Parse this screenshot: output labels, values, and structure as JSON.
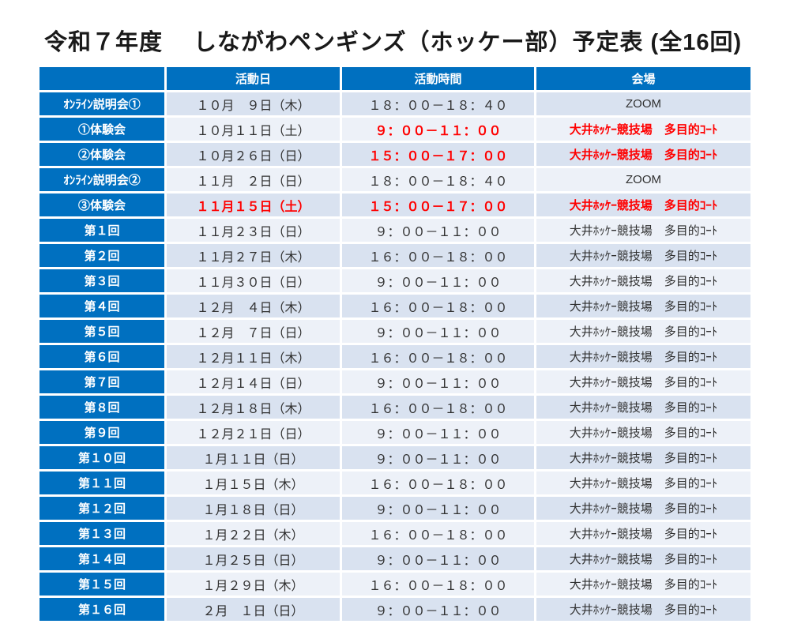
{
  "title": "令和７年度　 しながわペンギンズ（ホッケー部）予定表 (全16回)",
  "colors": {
    "header_blue": "#0070C0",
    "row_blue": "#d9e2f0",
    "row_light": "#edf1f8",
    "highlight_red": "#FF0000",
    "text_dark": "#303030",
    "title_color": "#1a1a1a"
  },
  "table": {
    "headers": [
      "活動日",
      "活動時間",
      "会場"
    ],
    "rows": [
      {
        "label": "ｵﾝﾗｲﾝ説明会①",
        "date": "１０月　９日（木）",
        "time": "１８：００－１８：４０",
        "venue": "ZOOM",
        "date_red": false,
        "time_red": false,
        "venue_red": false
      },
      {
        "label": "①体験会",
        "date": "１０月１１日（土）",
        "time": "９：００－１１：００",
        "venue": "大井ﾎｯｹｰ競技場　多目的ｺｰﾄ",
        "date_red": false,
        "time_red": true,
        "venue_red": true
      },
      {
        "label": "②体験会",
        "date": "１０月２６日（日）",
        "time": "１５：００－１７：００",
        "venue": "大井ﾎｯｹｰ競技場　多目的ｺｰﾄ",
        "date_red": false,
        "time_red": true,
        "venue_red": true
      },
      {
        "label": "ｵﾝﾗｲﾝ説明会②",
        "date": "１１月　２日（日）",
        "time": "１８：００－１８：４０",
        "venue": "ZOOM",
        "date_red": false,
        "time_red": false,
        "venue_red": false
      },
      {
        "label": "③体験会",
        "date": "１１月１５日（土）",
        "time": "１５：００－１７：００",
        "venue": "大井ﾎｯｹｰ競技場　多目的ｺｰﾄ",
        "date_red": true,
        "time_red": true,
        "venue_red": true
      },
      {
        "label": "第１回",
        "date": "１１月２３日（日）",
        "time": "９：００－１１：００",
        "venue": "大井ﾎｯｹｰ競技場　多目的ｺｰﾄ",
        "date_red": false,
        "time_red": false,
        "venue_red": false
      },
      {
        "label": "第２回",
        "date": "１１月２７日（木）",
        "time": "１６：００－１８：００",
        "venue": "大井ﾎｯｹｰ競技場　多目的ｺｰﾄ",
        "date_red": false,
        "time_red": false,
        "venue_red": false
      },
      {
        "label": "第３回",
        "date": "１１月３０日（日）",
        "time": "９：００－１１：００",
        "venue": "大井ﾎｯｹｰ競技場　多目的ｺｰﾄ",
        "date_red": false,
        "time_red": false,
        "venue_red": false
      },
      {
        "label": "第４回",
        "date": "１２月　４日（木）",
        "time": "１６：００－１８：００",
        "venue": "大井ﾎｯｹｰ競技場　多目的ｺｰﾄ",
        "date_red": false,
        "time_red": false,
        "venue_red": false
      },
      {
        "label": "第５回",
        "date": "１２月　７日（日）",
        "time": "９：００－１１：００",
        "venue": "大井ﾎｯｹｰ競技場　多目的ｺｰﾄ",
        "date_red": false,
        "time_red": false,
        "venue_red": false
      },
      {
        "label": "第６回",
        "date": "１２月１１日（木）",
        "time": "１６：００－１８：００",
        "venue": "大井ﾎｯｹｰ競技場　多目的ｺｰﾄ",
        "date_red": false,
        "time_red": false,
        "venue_red": false
      },
      {
        "label": "第７回",
        "date": "１２月１４日（日）",
        "time": "９：００－１１：００",
        "venue": "大井ﾎｯｹｰ競技場　多目的ｺｰﾄ",
        "date_red": false,
        "time_red": false,
        "venue_red": false
      },
      {
        "label": "第８回",
        "date": "１２月１８日（木）",
        "time": "１６：００－１８：００",
        "venue": "大井ﾎｯｹｰ競技場　多目的ｺｰﾄ",
        "date_red": false,
        "time_red": false,
        "venue_red": false
      },
      {
        "label": "第９回",
        "date": "１２月２１日（日）",
        "time": "９：００－１１：００",
        "venue": "大井ﾎｯｹｰ競技場　多目的ｺｰﾄ",
        "date_red": false,
        "time_red": false,
        "venue_red": false
      },
      {
        "label": "第１０回",
        "date": "１月１１日（日）",
        "time": "９：００－１１：００",
        "venue": "大井ﾎｯｹｰ競技場　多目的ｺｰﾄ",
        "date_red": false,
        "time_red": false,
        "venue_red": false
      },
      {
        "label": "第１１回",
        "date": "１月１５日（木）",
        "time": "１６：００－１８：００",
        "venue": "大井ﾎｯｹｰ競技場　多目的ｺｰﾄ",
        "date_red": false,
        "time_red": false,
        "venue_red": false
      },
      {
        "label": "第１２回",
        "date": "１月１８日（日）",
        "time": "９：００－１１：００",
        "venue": "大井ﾎｯｹｰ競技場　多目的ｺｰﾄ",
        "date_red": false,
        "time_red": false,
        "venue_red": false
      },
      {
        "label": "第１３回",
        "date": "１月２２日（木）",
        "time": "１６：００－１８：００",
        "venue": "大井ﾎｯｹｰ競技場　多目的ｺｰﾄ",
        "date_red": false,
        "time_red": false,
        "venue_red": false
      },
      {
        "label": "第１４回",
        "date": "１月２５日（日）",
        "time": "９：００－１１：００",
        "venue": "大井ﾎｯｹｰ競技場　多目的ｺｰﾄ",
        "date_red": false,
        "time_red": false,
        "venue_red": false
      },
      {
        "label": "第１５回",
        "date": "１月２９日（木）",
        "time": "１６：００－１８：００",
        "venue": "大井ﾎｯｹｰ競技場　多目的ｺｰﾄ",
        "date_red": false,
        "time_red": false,
        "venue_red": false
      },
      {
        "label": "第１６回",
        "date": "２月　１日（日）",
        "time": "９：００－１１：００",
        "venue": "大井ﾎｯｹｰ競技場　多目的ｺｰﾄ",
        "date_red": false,
        "time_red": false,
        "venue_red": false
      }
    ]
  }
}
